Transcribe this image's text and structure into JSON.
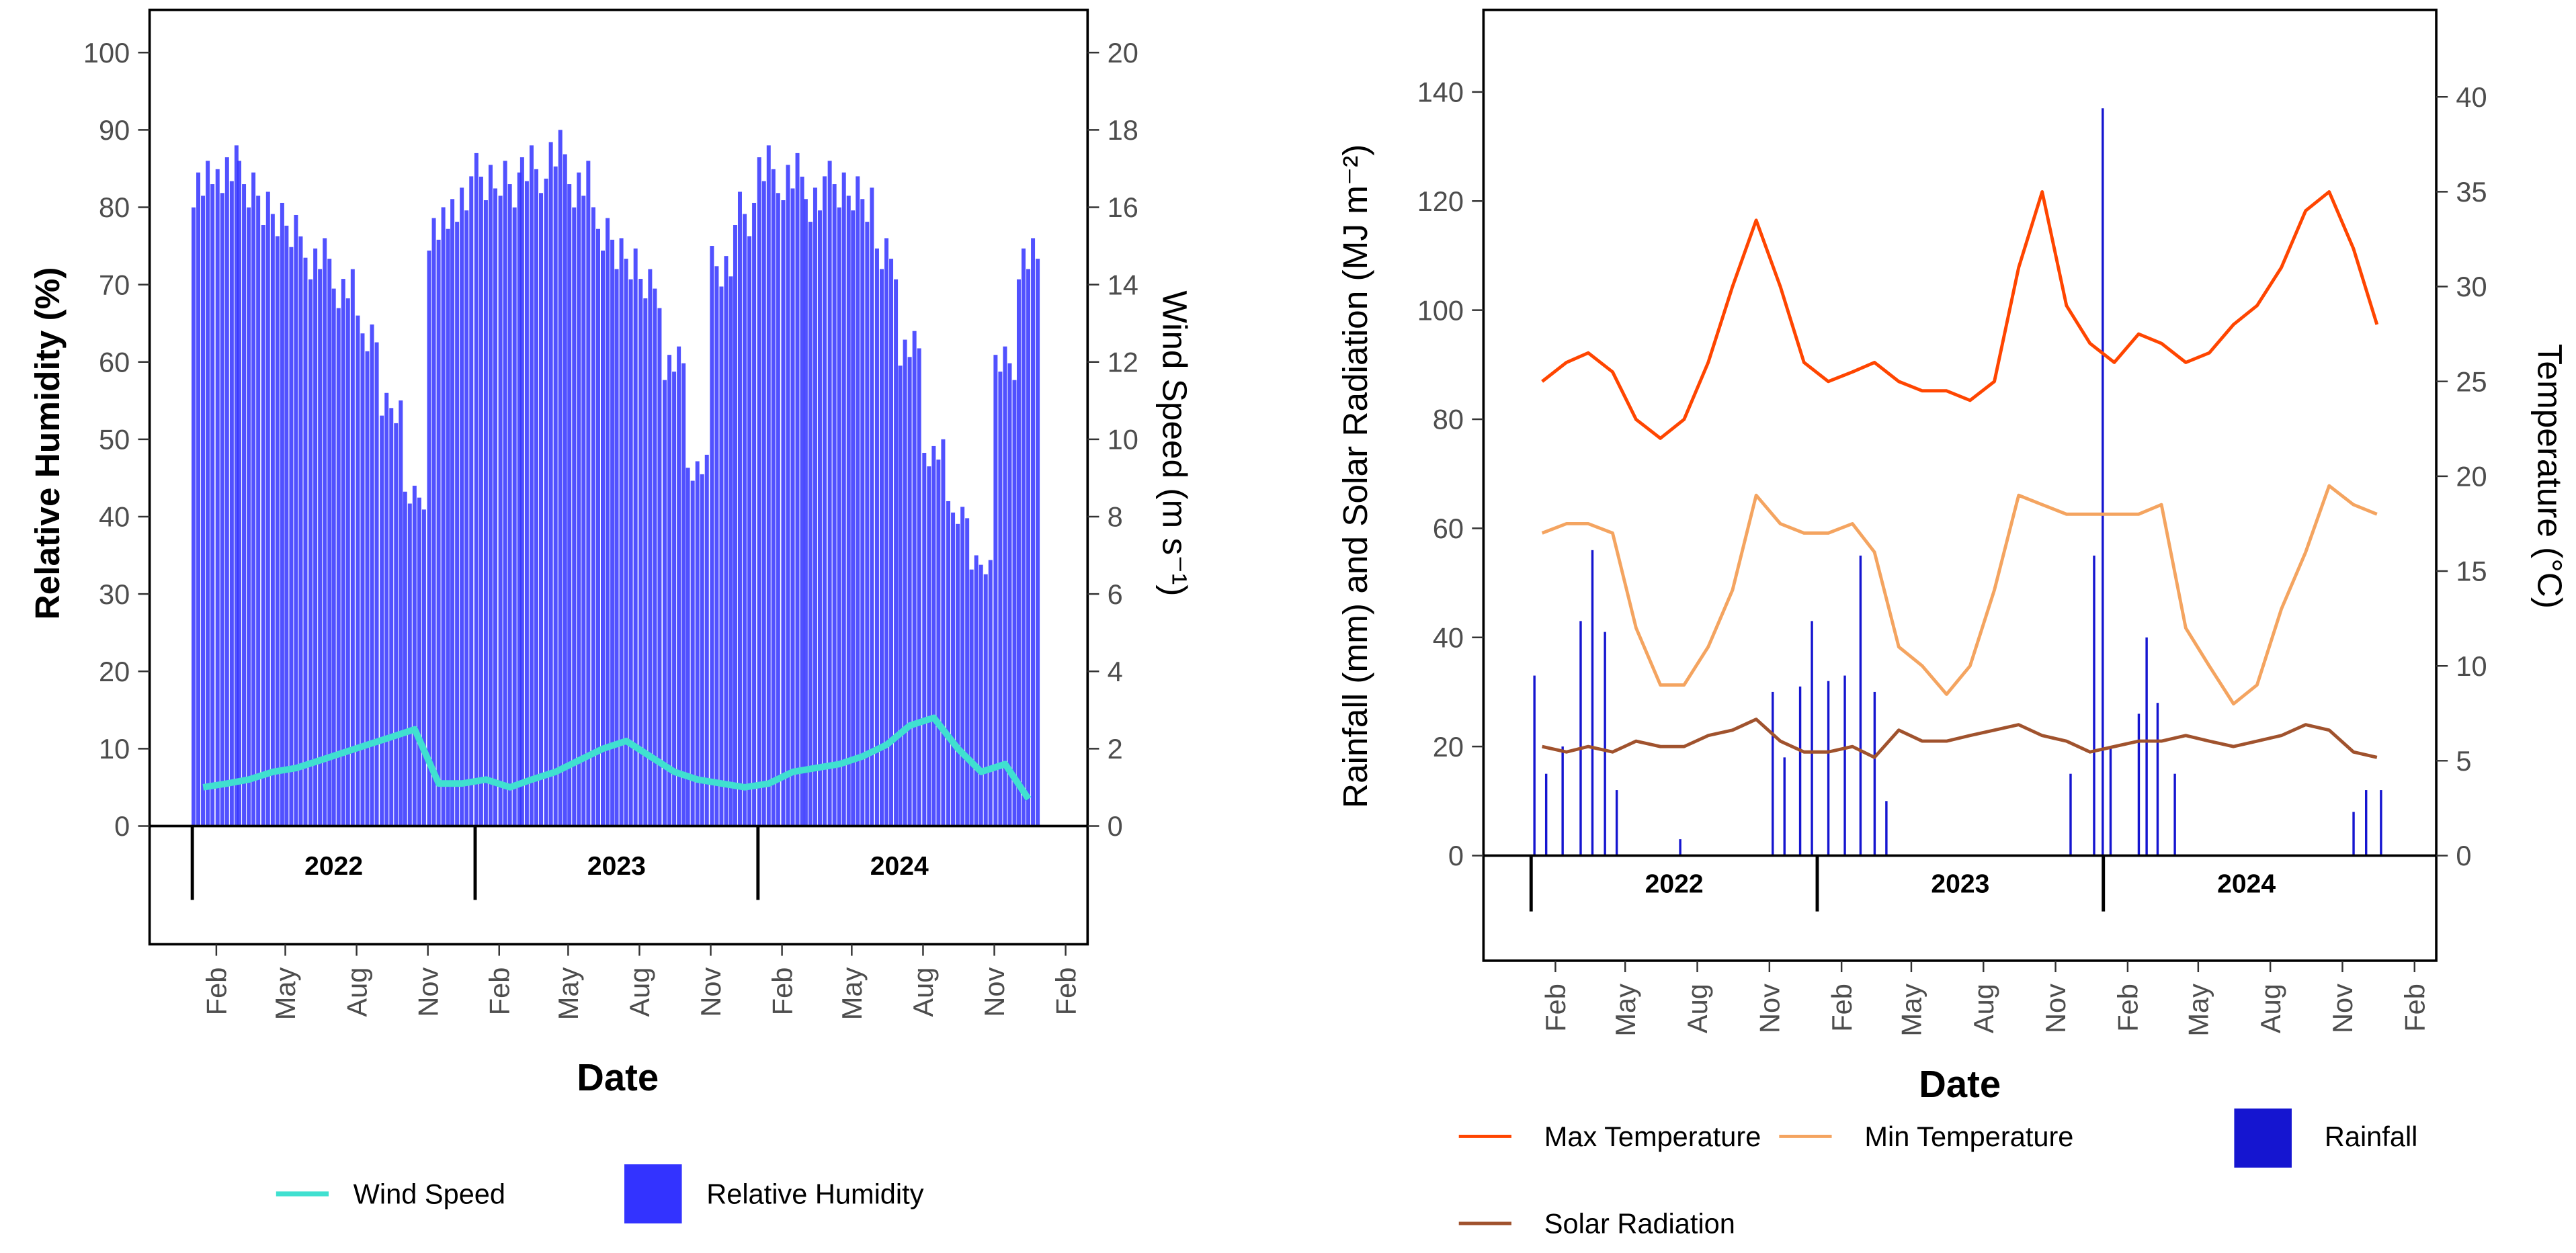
{
  "chart_data": [
    {
      "type": "bar+line",
      "xlabel": "Date",
      "ylabel": "Relative Humidity (%)",
      "y2label": "Wind Speed (m s⁻¹)",
      "ylim": [
        0,
        100
      ],
      "y2lim": [
        0,
        20
      ],
      "yticks": [
        0,
        10,
        20,
        30,
        40,
        50,
        60,
        70,
        80,
        90,
        100
      ],
      "y2ticks": [
        0,
        2,
        4,
        6,
        8,
        10,
        12,
        14,
        16,
        18,
        20
      ],
      "year_labels": [
        "2022",
        "2023",
        "2024"
      ],
      "month_ticks": [
        "Feb",
        "May",
        "Aug",
        "Nov",
        "Feb",
        "May",
        "Aug",
        "Nov",
        "Feb",
        "May",
        "Aug",
        "Nov",
        "Feb"
      ],
      "x_monthly": [
        "2022-01",
        "2022-02",
        "2022-03",
        "2022-04",
        "2022-05",
        "2022-06",
        "2022-07",
        "2022-08",
        "2022-09",
        "2022-10",
        "2022-11",
        "2022-12",
        "2023-01",
        "2023-02",
        "2023-03",
        "2023-04",
        "2023-05",
        "2023-06",
        "2023-07",
        "2023-08",
        "2023-09",
        "2023-10",
        "2023-11",
        "2023-12",
        "2024-01",
        "2024-02",
        "2024-03",
        "2024-04",
        "2024-05",
        "2024-06",
        "2024-07",
        "2024-08",
        "2024-09",
        "2024-10",
        "2024-11",
        "2024-12"
      ],
      "series": [
        {
          "name": "Relative Humidity",
          "kind": "bar",
          "axis": "left",
          "color": "#3333FF",
          "values": [
            86,
            88,
            86,
            82,
            79,
            76,
            72,
            66,
            56,
            44,
            80,
            84,
            87,
            86,
            88,
            90,
            86,
            80,
            76,
            72,
            62,
            48,
            75,
            82,
            88,
            87,
            84,
            86,
            84,
            76,
            64,
            50,
            42,
            35,
            62,
            76
          ]
        },
        {
          "name": "Wind Speed",
          "kind": "line",
          "axis": "right",
          "color": "#40E0D0",
          "values": [
            1.0,
            1.1,
            1.2,
            1.4,
            1.5,
            1.7,
            1.9,
            2.1,
            2.3,
            2.5,
            1.1,
            1.1,
            1.2,
            1.0,
            1.2,
            1.4,
            1.7,
            2.0,
            2.2,
            1.8,
            1.4,
            1.2,
            1.1,
            1.0,
            1.1,
            1.4,
            1.5,
            1.6,
            1.8,
            2.1,
            2.6,
            2.8,
            2.0,
            1.4,
            1.6,
            0.7
          ]
        }
      ],
      "legend": [
        "Wind Speed",
        "Relative Humidity"
      ],
      "legend_placement": "bottom"
    },
    {
      "type": "bar+line",
      "xlabel": "Date",
      "ylabel": "Rainfall (mm) and Solar Radiation (MJ m⁻²)",
      "y2label": "Temperature (°C)",
      "ylim": [
        0,
        140
      ],
      "y2lim": [
        0,
        40
      ],
      "yticks": [
        0,
        20,
        40,
        60,
        80,
        100,
        120,
        140
      ],
      "y2ticks": [
        0,
        5,
        10,
        15,
        20,
        25,
        30,
        35,
        40
      ],
      "year_labels": [
        "2022",
        "2023",
        "2024"
      ],
      "month_ticks": [
        "Feb",
        "May",
        "Aug",
        "Nov",
        "Feb",
        "May",
        "Aug",
        "Nov",
        "Feb",
        "May",
        "Aug",
        "Nov",
        "Feb"
      ],
      "series": [
        {
          "name": "Max Temperature",
          "kind": "line",
          "axis": "right",
          "color": "#FF4500",
          "values": [
            25,
            26,
            26.5,
            25.5,
            23,
            22,
            23,
            26,
            30,
            33.5,
            30,
            26,
            25,
            25.5,
            26,
            25,
            24.5,
            24.5,
            24,
            25,
            31,
            35,
            29,
            27,
            26,
            27.5,
            27,
            26,
            26.5,
            28,
            29,
            31,
            34,
            35,
            32,
            28
          ]
        },
        {
          "name": "Min Temperature",
          "kind": "line",
          "axis": "right",
          "color": "#F4A460",
          "values": [
            17,
            17.5,
            17.5,
            17,
            12,
            9,
            9,
            11,
            14,
            19,
            17.5,
            17,
            17,
            17.5,
            16,
            11,
            10,
            8.5,
            10,
            14,
            19,
            18.5,
            18,
            18,
            18,
            18,
            18.5,
            12,
            10,
            8,
            9,
            13,
            16,
            19.5,
            18.5,
            18
          ]
        },
        {
          "name": "Solar Radiation",
          "kind": "line",
          "axis": "left",
          "color": "#A0522D",
          "values": [
            20,
            19,
            20,
            19,
            21,
            20,
            20,
            22,
            23,
            25,
            21,
            19,
            19,
            20,
            18,
            23,
            21,
            21,
            22,
            23,
            24,
            22,
            21,
            19,
            20,
            21,
            21,
            22,
            21,
            20,
            21,
            22,
            24,
            23,
            19,
            18
          ]
        },
        {
          "name": "Rainfall",
          "kind": "bar",
          "axis": "left",
          "color": "#1515D0",
          "events": [
            [
              "2022-01-05",
              33
            ],
            [
              "2022-01-20",
              15
            ],
            [
              "2022-02-10",
              20
            ],
            [
              "2022-03-05",
              43
            ],
            [
              "2022-03-20",
              56
            ],
            [
              "2022-04-05",
              41
            ],
            [
              "2022-04-20",
              12
            ],
            [
              "2022-07-10",
              3
            ],
            [
              "2022-11-05",
              30
            ],
            [
              "2022-11-20",
              18
            ],
            [
              "2022-12-10",
              31
            ],
            [
              "2022-12-25",
              43
            ],
            [
              "2023-01-15",
              32
            ],
            [
              "2023-02-05",
              33
            ],
            [
              "2023-02-25",
              55
            ],
            [
              "2023-03-15",
              30
            ],
            [
              "2023-03-30",
              10
            ],
            [
              "2023-11-20",
              15
            ],
            [
              "2023-12-20",
              55
            ],
            [
              "2023-12-31",
              137
            ],
            [
              "2024-01-10",
              20
            ],
            [
              "2024-02-15",
              26
            ],
            [
              "2024-02-25",
              40
            ],
            [
              "2024-03-10",
              28
            ],
            [
              "2024-04-01",
              15
            ],
            [
              "2024-11-15",
              8
            ],
            [
              "2024-12-01",
              12
            ],
            [
              "2024-12-20",
              12
            ]
          ]
        }
      ],
      "legend": [
        "Max Temperature",
        "Min Temperature",
        "Rainfall",
        "Solar Radiation"
      ],
      "legend_placement": "bottom"
    }
  ]
}
